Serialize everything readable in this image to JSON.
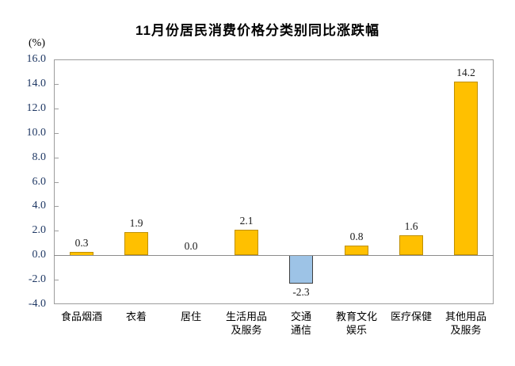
{
  "title": "11月份居民消费价格分类别同比涨跌幅",
  "axis_unit_label": "(%)",
  "colors": {
    "positive_fill": "#FFC000",
    "positive_border": "#BF9000",
    "negative_fill": "#9DC3E6",
    "negative_border": "#404040",
    "axis_line": "#9d9d9d",
    "tick_label_color": "#1F3864",
    "title_color": "#000000"
  },
  "chart_data": {
    "type": "bar",
    "title": "11月份居民消费价格分类别同比涨跌幅",
    "ylabel": "(%)",
    "xlabel": "",
    "categories": [
      "食品烟酒",
      "衣着",
      "居住",
      "生活用品\n及服务",
      "交通\n通信",
      "教育文化\n娱乐",
      "医疗保健",
      "其他用品\n及服务"
    ],
    "values": [
      0.3,
      1.9,
      0.0,
      2.1,
      -2.3,
      0.8,
      1.6,
      14.2
    ],
    "data_labels": [
      "0.3",
      "1.9",
      "0.0",
      "2.1",
      "-2.3",
      "0.8",
      "1.6",
      "14.2"
    ],
    "ylim": [
      -4.0,
      16.0
    ],
    "ytick_step": 2.0,
    "ytick_labels": [
      "16.0",
      "14.0",
      "12.0",
      "10.0",
      "8.0",
      "6.0",
      "4.0",
      "2.0",
      "0.0",
      "-2.0",
      "-4.0"
    ],
    "grid": false,
    "legend": false,
    "negative_series_color_note": "negative bar drawn light blue, positives orange"
  }
}
